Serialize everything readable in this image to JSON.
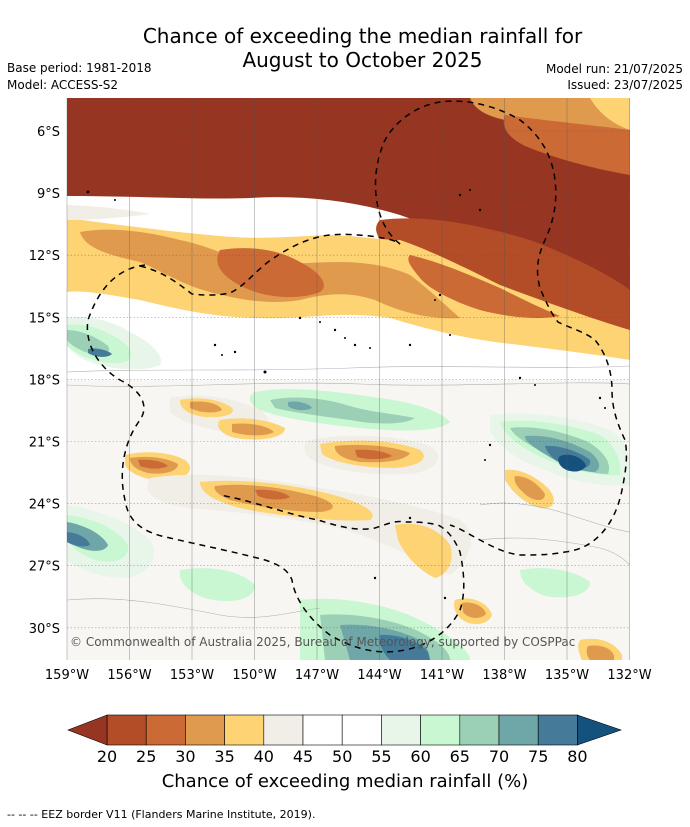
{
  "title_line1": "Chance of exceeding the median rainfall for",
  "title_line2": "August to October 2025",
  "base_period": "Base period: 1981-2018",
  "model": "Model: ACCESS-S2",
  "model_run": "Model run: 21/07/2025",
  "issued": "Issued: 23/07/2025",
  "copyright": "© Commonwealth of Australia 2025, Bureau of Meteorology, supported by COSPPac",
  "footnote": "--  --  -- EEZ border V11 (Flanders Marine Institute, 2019).",
  "lat_labels": [
    "6°S",
    "9°S",
    "12°S",
    "15°S",
    "18°S",
    "21°S",
    "24°S",
    "27°S",
    "30°S"
  ],
  "lon_labels": [
    "159°W",
    "156°W",
    "153°W",
    "150°W",
    "147°W",
    "144°W",
    "141°W",
    "138°W",
    "135°W",
    "132°W"
  ],
  "colorbar": {
    "title": "Chance of exceeding median rainfall (%)",
    "ticks": [
      "20",
      "25",
      "30",
      "35",
      "40",
      "45",
      "50",
      "55",
      "60",
      "65",
      "70",
      "75",
      "80"
    ],
    "colors": [
      "#963522",
      "#b34d28",
      "#cc6a35",
      "#e09a4e",
      "#fdd373",
      "#f1ede7",
      "#ffffff",
      "#ffffff",
      "#e8f5e9",
      "#c9f7d2",
      "#9bd0b6",
      "#6fa6a8",
      "#457b99",
      "#15517d"
    ]
  },
  "colors": {
    "brown_dark": "#963522",
    "brown_mid": "#b34d28",
    "orange_dark": "#cc6a35",
    "orange": "#e09a4e",
    "yellow": "#fdd373",
    "grey": "#f1ede7",
    "green_light": "#e8f5e9",
    "green": "#c9f7d2",
    "teal_light": "#9bd0b6",
    "teal": "#6fa6a8",
    "blue": "#457b99",
    "blue_dark": "#15517d"
  }
}
